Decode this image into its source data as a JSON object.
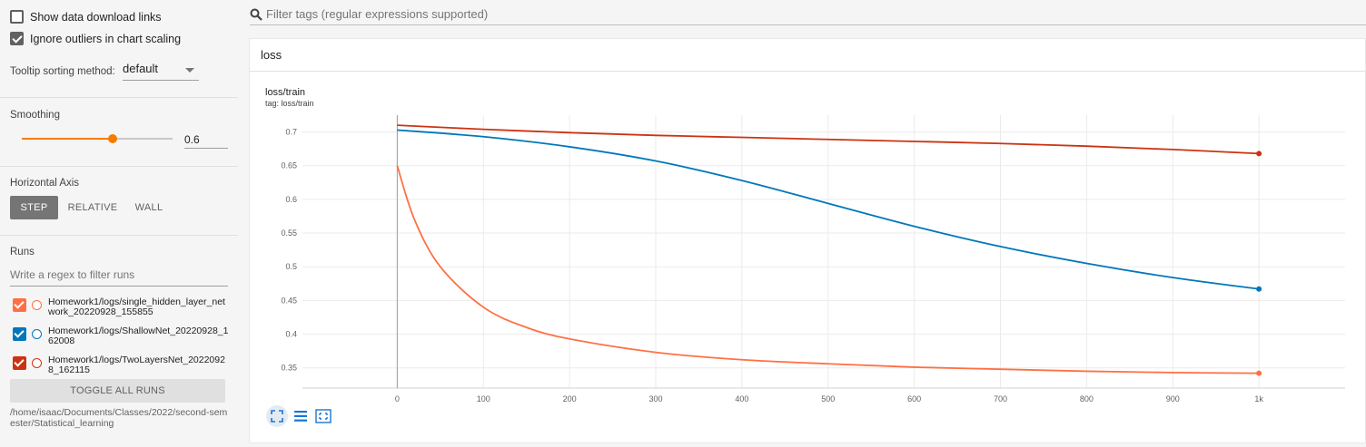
{
  "sidebar": {
    "show_download_links": "Show data download links",
    "ignore_outliers": "Ignore outliers in chart scaling",
    "tooltip_label": "Tooltip sorting method:",
    "tooltip_value": "default",
    "smoothing_label": "Smoothing",
    "smoothing_value": "0.6",
    "smoothing_fraction": 0.6,
    "horizontal_axis_label": "Horizontal Axis",
    "axis_options": [
      "STEP",
      "RELATIVE",
      "WALL"
    ],
    "axis_selected": "STEP",
    "runs_label": "Runs",
    "runs_filter_placeholder": "Write a regex to filter runs",
    "runs": [
      {
        "name": "Homework1/logs/single_hidden_layer_network_20220928_155855",
        "color": "#ff7043",
        "checked": true
      },
      {
        "name": "Homework1/logs/ShallowNet_20220928_162008",
        "color": "#0077bb",
        "checked": true
      },
      {
        "name": "Homework1/logs/TwoLayersNet_20220928_162115",
        "color": "#cc3311",
        "checked": true
      }
    ],
    "toggle_all": "TOGGLE ALL RUNS",
    "logdir": "/home/isaac/Documents/Classes/2022/second-semester/Statistical_learning"
  },
  "main": {
    "tag_filter_placeholder": "Filter tags (regular expressions supported)",
    "card_title": "loss",
    "chart_title": "loss/train",
    "chart_tag": "tag: loss/train"
  },
  "chart_data": {
    "type": "line",
    "title": "loss/train",
    "subtitle": "tag: loss/train",
    "xlabel": "",
    "ylabel": "",
    "x_ticks": [
      "0",
      "100",
      "200",
      "300",
      "400",
      "500",
      "600",
      "700",
      "800",
      "900",
      "1k"
    ],
    "y_ticks": [
      "0.35",
      "0.4",
      "0.45",
      "0.5",
      "0.55",
      "0.6",
      "0.65",
      "0.7"
    ],
    "xlim": [
      -110,
      1100
    ],
    "ylim": [
      0.32,
      0.725
    ],
    "grid": true,
    "series": [
      {
        "color": "#ff7043",
        "x": [
          0,
          20,
          50,
          100,
          150,
          200,
          300,
          400,
          500,
          600,
          700,
          800,
          900,
          1000
        ],
        "y": [
          0.65,
          0.57,
          0.5,
          0.44,
          0.41,
          0.393,
          0.373,
          0.362,
          0.356,
          0.351,
          0.348,
          0.345,
          0.343,
          0.342
        ]
      },
      {
        "color": "#0077bb",
        "x": [
          0,
          100,
          200,
          300,
          400,
          500,
          600,
          700,
          800,
          900,
          1000
        ],
        "y": [
          0.703,
          0.693,
          0.678,
          0.657,
          0.628,
          0.594,
          0.56,
          0.53,
          0.505,
          0.484,
          0.467
        ]
      },
      {
        "color": "#cc3311",
        "x": [
          0,
          100,
          200,
          300,
          400,
          500,
          600,
          700,
          800,
          900,
          1000
        ],
        "y": [
          0.71,
          0.704,
          0.699,
          0.695,
          0.692,
          0.689,
          0.686,
          0.683,
          0.679,
          0.674,
          0.668
        ]
      }
    ]
  }
}
